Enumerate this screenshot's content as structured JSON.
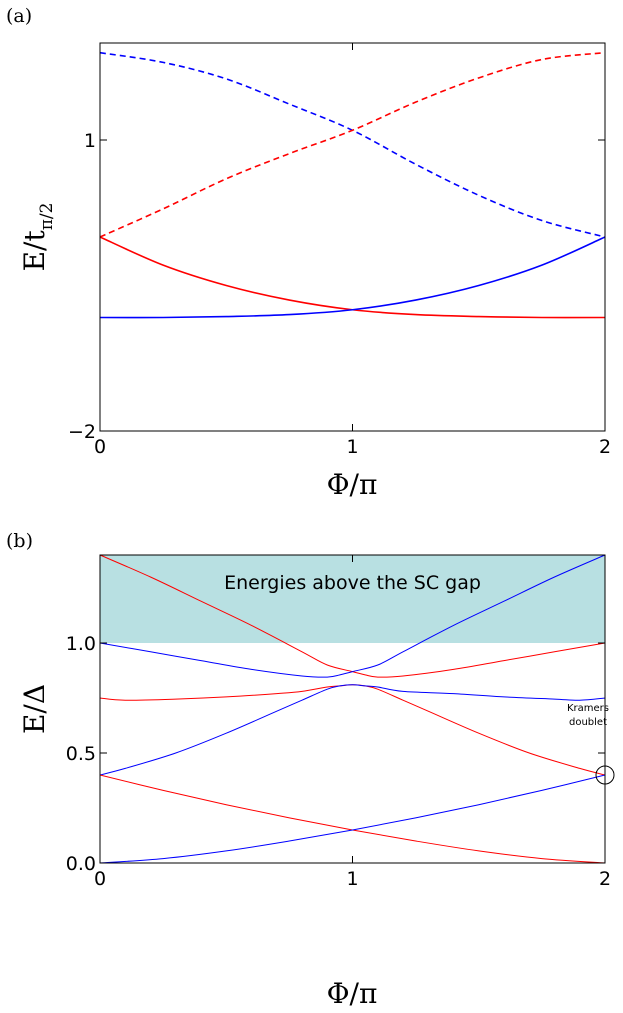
{
  "chart_data": [
    {
      "panel_label": "(a)",
      "type": "line",
      "xlabel": "Φ/π",
      "ylabel": "E/t_{π/2}",
      "ylabel_main": "E/t",
      "ylabel_sub": "π/2",
      "xlim": [
        0,
        2
      ],
      "ylim": [
        -2,
        2
      ],
      "xticks": [
        0,
        1,
        2
      ],
      "xtick_labels": [
        "0",
        "1",
        "2"
      ],
      "yticks": [
        -2,
        1
      ],
      "ytick_labels": [
        "−2",
        "1"
      ],
      "series": [
        {
          "color": "#0000ff",
          "style": "dashed",
          "x": [
            0,
            0.25,
            0.5,
            0.75,
            1.0,
            1.25,
            1.5,
            1.75,
            2.0
          ],
          "y": [
            1.9,
            1.8,
            1.63,
            1.37,
            1.1,
            0.75,
            0.43,
            0.17,
            0.0
          ]
        },
        {
          "color": "#ff0000",
          "style": "dashed",
          "x": [
            0,
            0.25,
            0.5,
            0.75,
            1.0,
            1.25,
            1.5,
            1.75,
            2.0
          ],
          "y": [
            0.0,
            0.29,
            0.6,
            0.86,
            1.1,
            1.39,
            1.64,
            1.83,
            1.9
          ]
        },
        {
          "color": "#ff0000",
          "style": "solid",
          "x": [
            0,
            0.25,
            0.5,
            0.75,
            1.0,
            1.25,
            1.5,
            1.75,
            2.0
          ],
          "y": [
            0.0,
            -0.29,
            -0.5,
            -0.65,
            -0.75,
            -0.8,
            -0.82,
            -0.83,
            -0.83
          ]
        },
        {
          "color": "#0000ff",
          "style": "solid",
          "x": [
            0,
            0.25,
            0.5,
            0.75,
            1.0,
            1.25,
            1.5,
            1.75,
            2.0
          ],
          "y": [
            -0.83,
            -0.83,
            -0.82,
            -0.8,
            -0.75,
            -0.65,
            -0.5,
            -0.29,
            0.0
          ]
        }
      ]
    },
    {
      "panel_label": "(b)",
      "type": "line",
      "xlabel": "Φ/π",
      "ylabel": "E/Δ",
      "xlim": [
        0,
        2
      ],
      "ylim": [
        0,
        1.4
      ],
      "xticks": [
        0,
        1,
        2
      ],
      "xtick_labels": [
        "0",
        "1",
        "2"
      ],
      "yticks": [
        0.0,
        0.5,
        1.0
      ],
      "ytick_labels": [
        "0.0",
        "0.5",
        "1.0"
      ],
      "shaded_region": {
        "y0": 1.0,
        "y1": 1.4,
        "color": "#b8e0e2",
        "label": "Energies above the SC gap"
      },
      "annotation": {
        "text_line1": "Kramers",
        "text_line2": "doublet",
        "x": 2.0,
        "y": 0.4
      },
      "series": [
        {
          "color": "#ff0000",
          "x": [
            0,
            0.2,
            0.4,
            0.6,
            0.8,
            0.9,
            1.0,
            1.05,
            1.1,
            1.2,
            1.4,
            1.6,
            1.8,
            2.0
          ],
          "y": [
            1.4,
            1.3,
            1.19,
            1.08,
            0.96,
            0.9,
            0.87,
            0.855,
            0.845,
            0.85,
            0.88,
            0.92,
            0.96,
            1.0
          ]
        },
        {
          "color": "#0000ff",
          "x": [
            0,
            0.2,
            0.4,
            0.6,
            0.8,
            0.9,
            0.95,
            1.0,
            1.1,
            1.2,
            1.4,
            1.6,
            1.8,
            2.0
          ],
          "y": [
            1.0,
            0.96,
            0.92,
            0.88,
            0.85,
            0.845,
            0.855,
            0.87,
            0.9,
            0.96,
            1.08,
            1.19,
            1.3,
            1.4
          ]
        },
        {
          "color": "#ff0000",
          "x": [
            0,
            0.1,
            0.3,
            0.5,
            0.7,
            0.8,
            0.9,
            0.95,
            1.0,
            1.05,
            1.1,
            1.2,
            1.3,
            1.5,
            1.7,
            1.9,
            2.0
          ],
          "y": [
            0.75,
            0.74,
            0.745,
            0.755,
            0.77,
            0.78,
            0.8,
            0.805,
            0.81,
            0.805,
            0.79,
            0.74,
            0.69,
            0.59,
            0.5,
            0.43,
            0.4
          ]
        },
        {
          "color": "#0000ff",
          "x": [
            0,
            0.1,
            0.3,
            0.5,
            0.7,
            0.8,
            0.9,
            0.95,
            1.0,
            1.05,
            1.1,
            1.2,
            1.4,
            1.6,
            1.8,
            1.9,
            2.0
          ],
          "y": [
            0.4,
            0.43,
            0.5,
            0.59,
            0.69,
            0.74,
            0.79,
            0.805,
            0.81,
            0.805,
            0.8,
            0.78,
            0.77,
            0.755,
            0.745,
            0.74,
            0.75
          ]
        },
        {
          "color": "#ff0000",
          "x": [
            0,
            0.25,
            0.5,
            0.75,
            1.0,
            1.25,
            1.5,
            1.75,
            2.0
          ],
          "y": [
            0.4,
            0.33,
            0.265,
            0.205,
            0.15,
            0.1,
            0.055,
            0.02,
            0.0
          ]
        },
        {
          "color": "#0000ff",
          "x": [
            0,
            0.25,
            0.5,
            0.75,
            1.0,
            1.25,
            1.5,
            1.75,
            2.0
          ],
          "y": [
            0.0,
            0.02,
            0.055,
            0.1,
            0.15,
            0.205,
            0.265,
            0.33,
            0.4
          ]
        }
      ]
    }
  ]
}
